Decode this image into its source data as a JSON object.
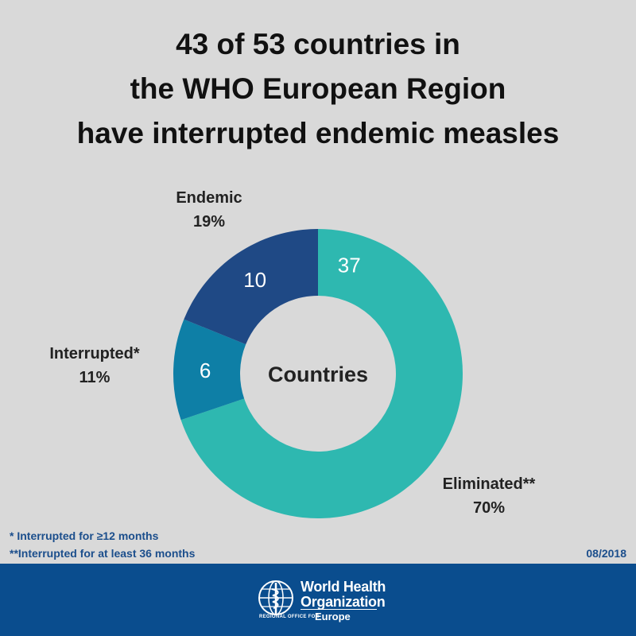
{
  "title_lines": [
    "43 of 53 countries in",
    "the WHO European Region",
    "have interrupted endemic measles"
  ],
  "chart_data": {
    "type": "pie",
    "style": "donut",
    "center_label": "Countries",
    "slices": [
      {
        "name": "Eliminated**",
        "value": 37,
        "percent": "70%",
        "color": "#2eb8b0"
      },
      {
        "name": "Interrupted*",
        "value": 6,
        "percent": "11%",
        "color": "#0e7fa6"
      },
      {
        "name": "Endemic",
        "value": 10,
        "percent": "19%",
        "color": "#1f4985"
      }
    ]
  },
  "footnotes": [
    "* Interrupted for ≥12 months",
    "**Interrupted for at least 36 months"
  ],
  "date": "08/2018",
  "footer": {
    "org_line1": "World Health",
    "org_line2": "Organization",
    "regional_office": "REGIONAL OFFICE FOR",
    "region": "Europe",
    "background": "#0a4d8e"
  }
}
